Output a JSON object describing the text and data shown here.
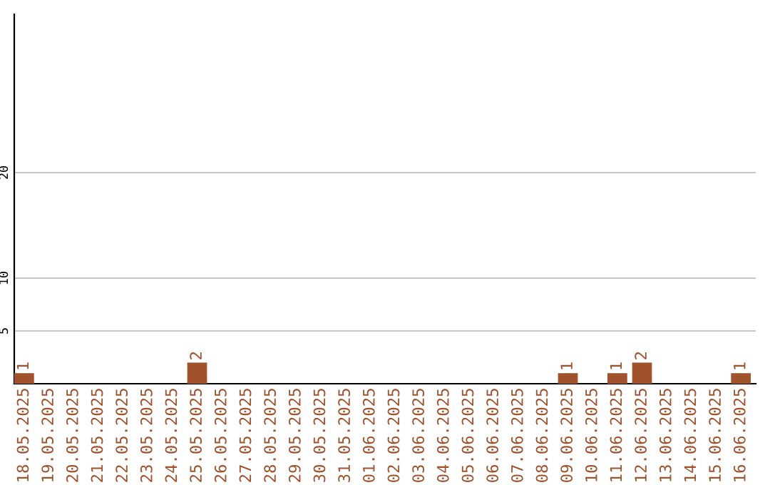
{
  "chart_data": {
    "type": "bar",
    "categories": [
      "18.05.2025",
      "19.05.2025",
      "20.05.2025",
      "21.05.2025",
      "22.05.2025",
      "23.05.2025",
      "24.05.2025",
      "25.05.2025",
      "26.05.2025",
      "27.05.2025",
      "28.05.2025",
      "29.05.2025",
      "30.05.2025",
      "31.05.2025",
      "01.06.2025",
      "02.06.2025",
      "03.06.2025",
      "04.06.2025",
      "05.06.2025",
      "06.06.2025",
      "07.06.2025",
      "08.06.2025",
      "09.06.2025",
      "10.06.2025",
      "11.06.2025",
      "12.06.2025",
      "13.06.2025",
      "14.06.2025",
      "15.06.2025",
      "16.06.2025"
    ],
    "values": [
      1,
      0,
      0,
      0,
      0,
      0,
      0,
      2,
      0,
      0,
      0,
      0,
      0,
      0,
      0,
      0,
      0,
      0,
      0,
      0,
      0,
      0,
      1,
      0,
      1,
      2,
      0,
      0,
      0,
      1
    ],
    "value_labels": [
      "1",
      null,
      null,
      null,
      null,
      null,
      null,
      "2",
      null,
      null,
      null,
      null,
      null,
      null,
      null,
      null,
      null,
      null,
      null,
      null,
      null,
      null,
      "1",
      null,
      "1",
      "2",
      null,
      null,
      null,
      "1"
    ],
    "color": "#a0522d",
    "ylim": [
      0,
      35
    ],
    "yticks": [
      5,
      10,
      20
    ],
    "grid": "y"
  }
}
